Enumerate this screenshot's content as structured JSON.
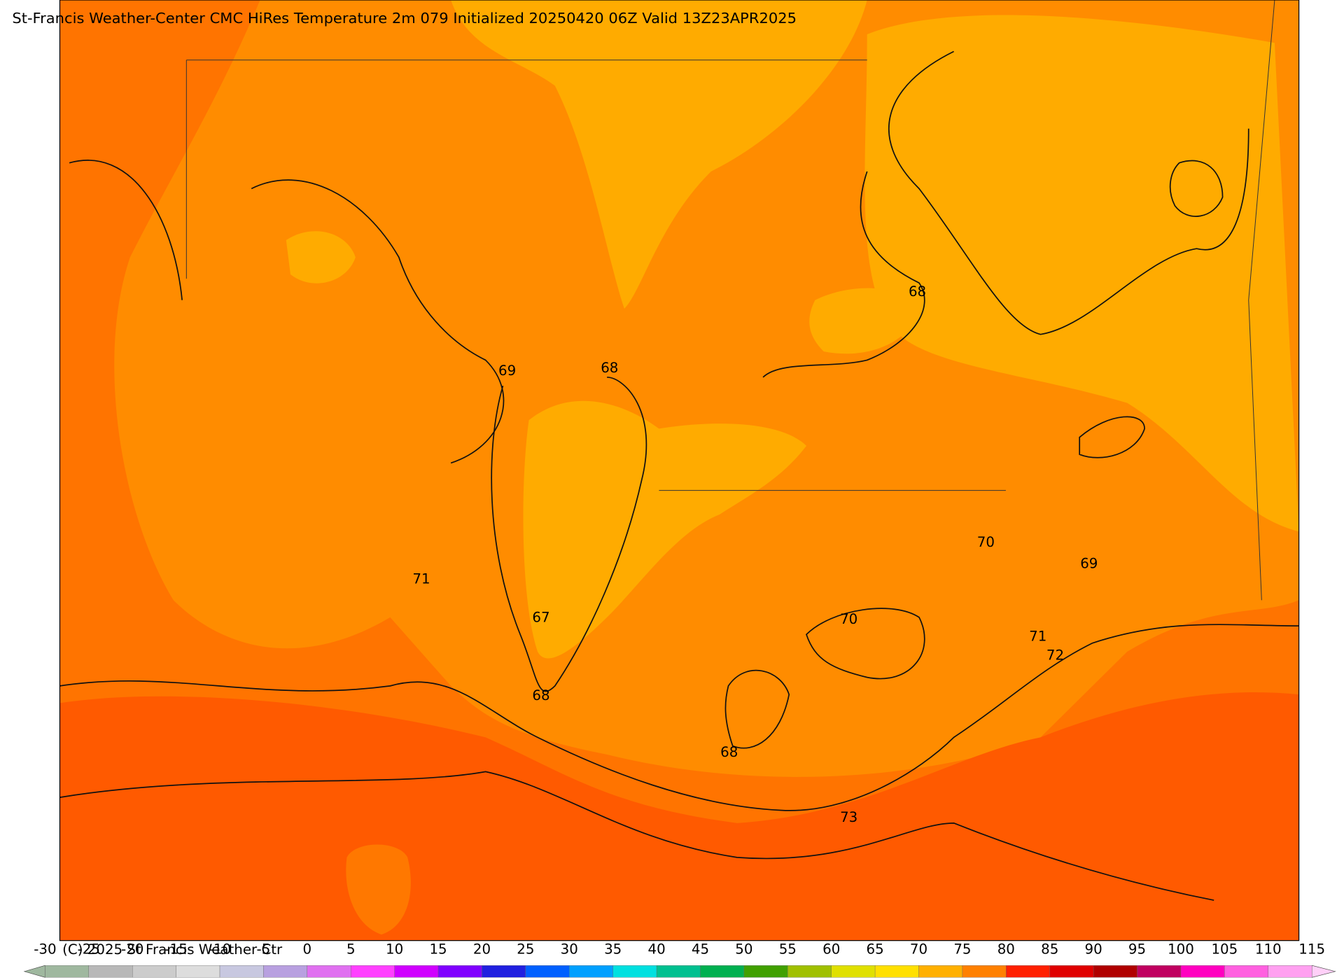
{
  "header": {
    "title": "St-Francis Weather-Center CMC HiRes Temperature 2m  079 Initialized 20250420 06Z Valid 13Z23APR2025"
  },
  "map": {
    "contour_labels": [
      68,
      69,
      68,
      71,
      70,
      69,
      67,
      70,
      71,
      72,
      68,
      68,
      73
    ]
  },
  "colorbar": {
    "ticks": [
      -30,
      -25,
      -20,
      -15,
      -10,
      -5,
      0,
      5,
      10,
      15,
      20,
      25,
      30,
      35,
      40,
      45,
      50,
      55,
      60,
      65,
      70,
      75,
      80,
      85,
      90,
      95,
      100,
      105,
      110,
      115
    ],
    "colors": [
      "#9fb89f",
      "#b8b8b8",
      "#cccccc",
      "#dddddd",
      "#c8c8e0",
      "#b8a0e0",
      "#e070f0",
      "#ff40ff",
      "#d000ff",
      "#8000ff",
      "#2020e0",
      "#0060ff",
      "#00a0ff",
      "#00e0e0",
      "#00c090",
      "#00b050",
      "#40a000",
      "#a0c000",
      "#e0e000",
      "#ffe000",
      "#ffb000",
      "#ff8000",
      "#ff2000",
      "#e00000",
      "#b00000",
      "#c00060",
      "#ff00c0",
      "#ff60e0",
      "#ffa0f0"
    ]
  },
  "footer": {
    "copyright": "(C) 2025 St Francis Weather Ctr"
  }
}
